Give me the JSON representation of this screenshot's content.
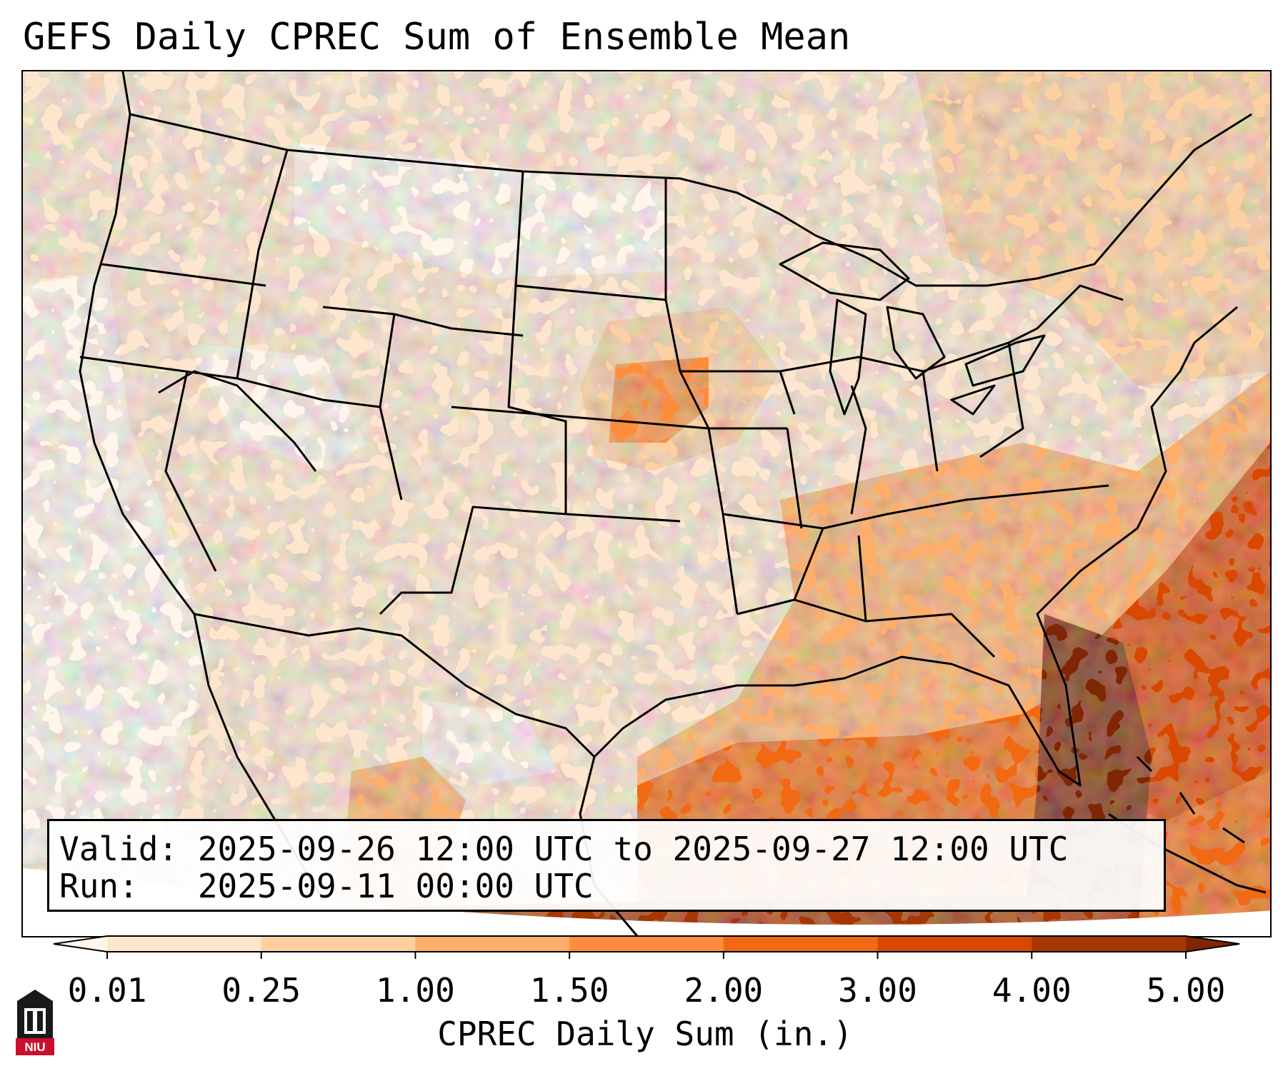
{
  "title": "GEFS Daily CPREC Sum of Ensemble Mean",
  "info": {
    "valid": "Valid: 2025-09-26 12:00 UTC to 2025-09-27 12:00 UTC",
    "run": "Run:   2025-09-11 00:00 UTC"
  },
  "colorbar": {
    "label": "CPREC Daily Sum (in.)",
    "ticks": [
      "0.01",
      "0.25",
      "1.00",
      "1.50",
      "2.00",
      "3.00",
      "4.00",
      "5.00"
    ],
    "colors": [
      "#fff5eb",
      "#fee6ce",
      "#fdd0a2",
      "#fdae6b",
      "#fd8d3c",
      "#f16913",
      "#d94801",
      "#a63603",
      "#7f2704"
    ],
    "extend": "both"
  },
  "map_colors": {
    "outside": "#ffffff",
    "border": "#000000"
  },
  "logo": {
    "text": "NIU",
    "primary_color": "#c8102e",
    "secondary_color": "#000000"
  }
}
